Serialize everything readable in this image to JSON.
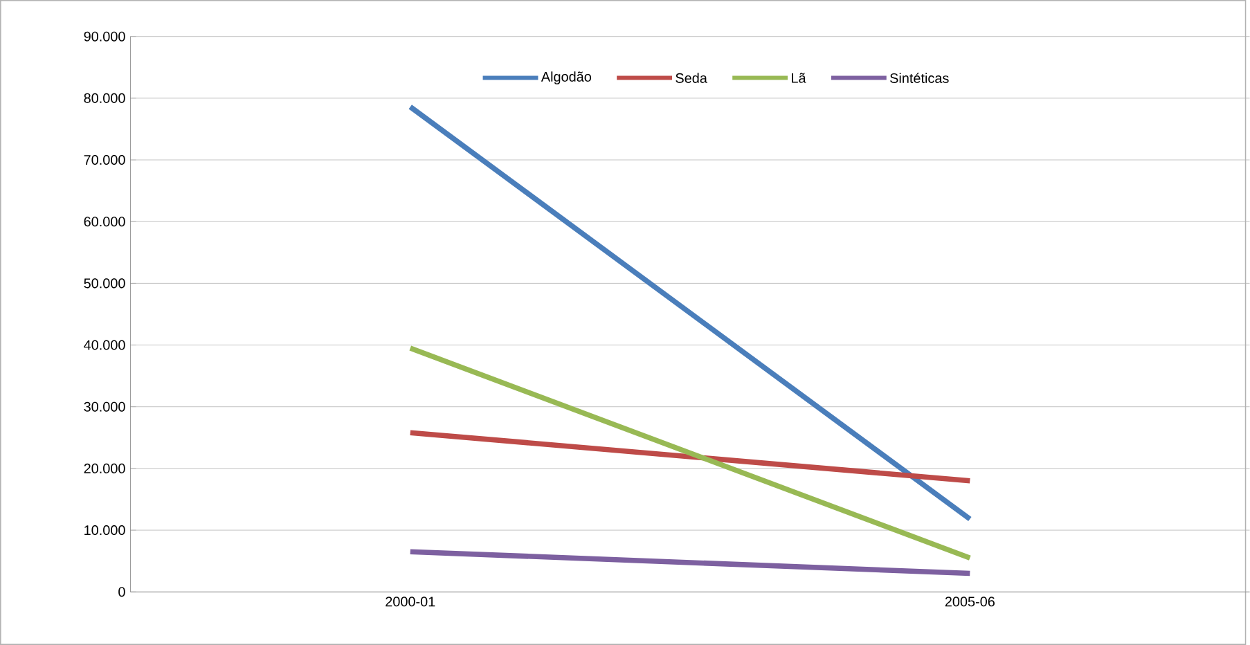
{
  "chart_data": {
    "type": "line",
    "categories": [
      "2000-01",
      "2005-06"
    ],
    "series": [
      {
        "name": "Algodão",
        "color": "#4a7ebb",
        "values": [
          78600,
          11800
        ]
      },
      {
        "name": "Seda",
        "color": "#be4b48",
        "values": [
          25800,
          18000
        ]
      },
      {
        "name": "Lã",
        "color": "#98b954",
        "values": [
          39500,
          5500
        ]
      },
      {
        "name": "Sintéticas",
        "color": "#7d60a0",
        "values": [
          6500,
          3000
        ]
      }
    ],
    "ylim": [
      0,
      90000
    ],
    "yticks": [
      {
        "value": 0,
        "label": "0"
      },
      {
        "value": 10000,
        "label": "10.000"
      },
      {
        "value": 20000,
        "label": "20.000"
      },
      {
        "value": 30000,
        "label": "30.000"
      },
      {
        "value": 40000,
        "label": "40.000"
      },
      {
        "value": 50000,
        "label": "50.000"
      },
      {
        "value": 60000,
        "label": "60.000"
      },
      {
        "value": 70000,
        "label": "70.000"
      },
      {
        "value": 80000,
        "label": "80.000"
      },
      {
        "value": 90000,
        "label": "90.000"
      }
    ],
    "grid": "y",
    "legend": "top",
    "marker": "none",
    "line_style": "solid"
  }
}
